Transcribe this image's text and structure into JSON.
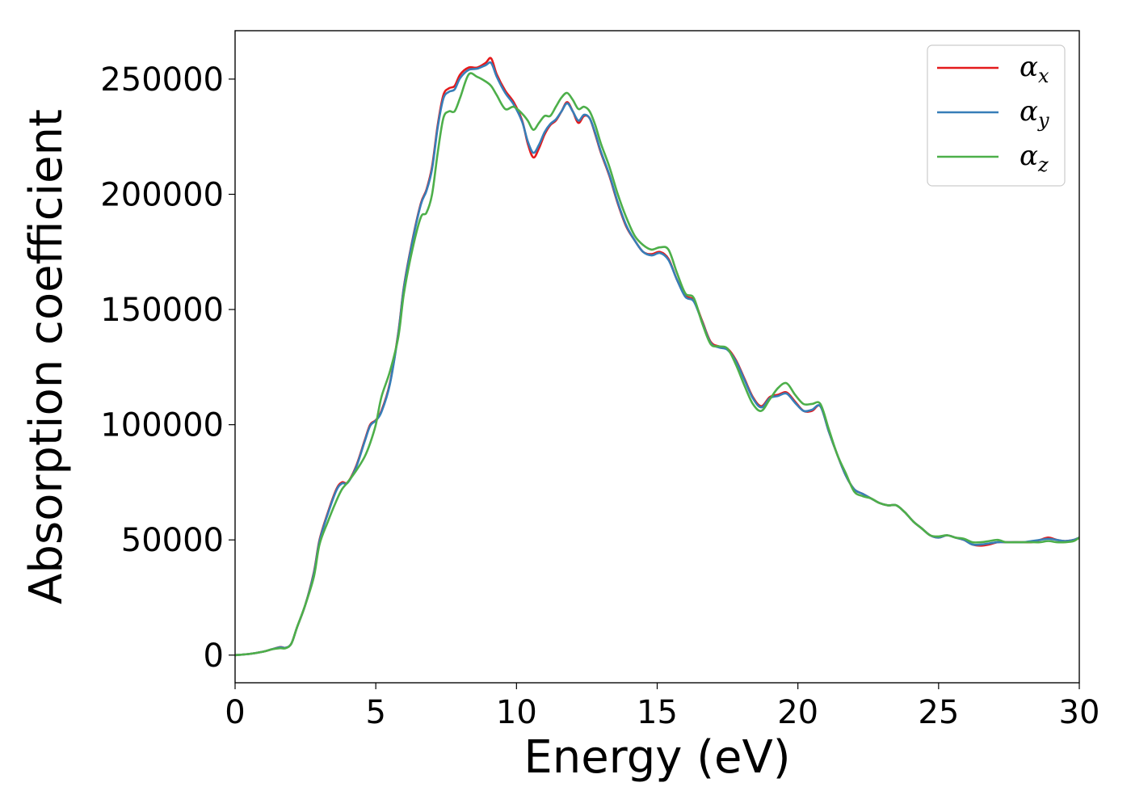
{
  "chart_data": {
    "type": "line",
    "title": "",
    "xlabel": "Energy (eV)",
    "ylabel": "Absorption coefficient",
    "xlim": [
      0,
      30
    ],
    "ylim": [
      -12000,
      271000
    ],
    "xticks": [
      0,
      5,
      10,
      15,
      20,
      25,
      30
    ],
    "xtick_labels": [
      "0",
      "5",
      "10",
      "15",
      "20",
      "25",
      "30"
    ],
    "yticks": [
      0,
      50000,
      100000,
      150000,
      200000,
      250000
    ],
    "ytick_labels": [
      "0",
      "50000",
      "100000",
      "150000",
      "200000",
      "250000"
    ],
    "grid": false,
    "legend_position": "top-right",
    "series": [
      {
        "name": "α_x",
        "legend_symbol": "α",
        "legend_sub": "x",
        "color": "#e41a1c",
        "x": [
          0,
          0.5,
          1.0,
          1.3,
          1.6,
          1.8,
          2.0,
          2.2,
          2.5,
          2.8,
          3.0,
          3.3,
          3.6,
          3.8,
          4.0,
          4.3,
          4.6,
          4.8,
          5.0,
          5.2,
          5.5,
          5.8,
          6.0,
          6.3,
          6.6,
          6.8,
          7.0,
          7.2,
          7.4,
          7.6,
          7.8,
          8.0,
          8.3,
          8.6,
          8.9,
          9.1,
          9.3,
          9.6,
          9.9,
          10.2,
          10.4,
          10.6,
          10.8,
          11.0,
          11.2,
          11.4,
          11.6,
          11.8,
          12.0,
          12.2,
          12.4,
          12.6,
          12.8,
          13.0,
          13.3,
          13.6,
          13.9,
          14.2,
          14.5,
          14.8,
          15.1,
          15.4,
          15.7,
          16.0,
          16.3,
          16.6,
          16.9,
          17.2,
          17.5,
          17.8,
          18.1,
          18.4,
          18.7,
          19.0,
          19.3,
          19.6,
          19.9,
          20.2,
          20.5,
          20.8,
          21.1,
          21.4,
          21.7,
          22.0,
          22.3,
          22.6,
          22.9,
          23.2,
          23.5,
          23.8,
          24.1,
          24.4,
          24.7,
          25.0,
          25.3,
          25.6,
          25.9,
          26.2,
          26.5,
          26.8,
          27.1,
          27.4,
          27.7,
          28.0,
          28.3,
          28.6,
          28.9,
          29.2,
          29.5,
          29.8,
          30.0
        ],
        "y": [
          0,
          500,
          1500,
          2500,
          3500,
          3200,
          5000,
          12000,
          22000,
          36000,
          50000,
          62000,
          72000,
          75000,
          75000,
          82000,
          93000,
          100000,
          102000,
          106000,
          118000,
          140000,
          160000,
          180000,
          196000,
          202000,
          212000,
          230000,
          243000,
          246000,
          247000,
          252000,
          255000,
          255000,
          257000,
          259000,
          252000,
          245000,
          240000,
          232000,
          222000,
          216000,
          220000,
          226000,
          230000,
          232000,
          236000,
          240000,
          236000,
          231000,
          234000,
          233000,
          226000,
          218000,
          208000,
          196000,
          186000,
          180000,
          175000,
          174000,
          175000,
          172000,
          163000,
          156000,
          154000,
          145000,
          136000,
          134000,
          133000,
          128000,
          120000,
          112000,
          108000,
          112000,
          113000,
          114000,
          110000,
          106000,
          106000,
          108000,
          97000,
          87000,
          78000,
          72000,
          70000,
          68000,
          66000,
          65000,
          65000,
          62000,
          58000,
          55000,
          52000,
          51000,
          52000,
          51000,
          50000,
          48000,
          47500,
          48000,
          49000,
          49000,
          49000,
          49000,
          49000,
          50000,
          51000,
          50000,
          49500,
          50000,
          51000
        ]
      },
      {
        "name": "α_y",
        "legend_symbol": "α",
        "legend_sub": "y",
        "color": "#377eb8",
        "x": [
          0,
          0.5,
          1.0,
          1.3,
          1.6,
          1.8,
          2.0,
          2.2,
          2.5,
          2.8,
          3.0,
          3.3,
          3.6,
          3.8,
          4.0,
          4.3,
          4.6,
          4.8,
          5.0,
          5.2,
          5.5,
          5.8,
          6.0,
          6.3,
          6.6,
          6.8,
          7.0,
          7.2,
          7.4,
          7.6,
          7.8,
          8.0,
          8.3,
          8.6,
          8.9,
          9.1,
          9.3,
          9.6,
          9.9,
          10.2,
          10.4,
          10.6,
          10.8,
          11.0,
          11.2,
          11.4,
          11.6,
          11.8,
          12.0,
          12.2,
          12.4,
          12.6,
          12.8,
          13.0,
          13.3,
          13.6,
          13.9,
          14.2,
          14.5,
          14.8,
          15.1,
          15.4,
          15.7,
          16.0,
          16.3,
          16.6,
          16.9,
          17.2,
          17.5,
          17.8,
          18.1,
          18.4,
          18.7,
          19.0,
          19.3,
          19.6,
          19.9,
          20.2,
          20.5,
          20.8,
          21.1,
          21.4,
          21.7,
          22.0,
          22.3,
          22.6,
          22.9,
          23.2,
          23.5,
          23.8,
          24.1,
          24.4,
          24.7,
          25.0,
          25.3,
          25.6,
          25.9,
          26.2,
          26.5,
          26.8,
          27.1,
          27.4,
          27.7,
          28.0,
          28.3,
          28.6,
          28.9,
          29.2,
          29.5,
          29.8,
          30.0
        ],
        "y": [
          0,
          500,
          1500,
          2500,
          3400,
          3200,
          5000,
          12000,
          22000,
          35500,
          49500,
          61500,
          71500,
          74500,
          74800,
          81500,
          92500,
          99500,
          101800,
          105500,
          117500,
          139500,
          159500,
          179500,
          195500,
          201500,
          211000,
          229000,
          241500,
          244500,
          245500,
          250500,
          254000,
          254500,
          256000,
          257000,
          251000,
          244000,
          239000,
          231500,
          223000,
          218000,
          221500,
          227000,
          230500,
          232500,
          236000,
          239500,
          236000,
          232000,
          234500,
          233000,
          226500,
          218500,
          208500,
          196500,
          186500,
          180000,
          175000,
          173500,
          174500,
          171500,
          163000,
          155500,
          153500,
          144500,
          135500,
          133500,
          132500,
          127500,
          119500,
          111500,
          107500,
          111500,
          112500,
          113500,
          109500,
          106000,
          106500,
          108000,
          97000,
          87000,
          78000,
          72000,
          70000,
          68000,
          66000,
          65000,
          65000,
          62000,
          58000,
          55000,
          52000,
          51000,
          52000,
          51000,
          50000,
          48000,
          48000,
          48500,
          49000,
          49000,
          49000,
          49000,
          49500,
          50000,
          50500,
          50000,
          49500,
          50000,
          51000
        ]
      },
      {
        "name": "α_z",
        "legend_symbol": "α",
        "legend_sub": "z",
        "color": "#4daf4a",
        "x": [
          0,
          0.5,
          1.0,
          1.3,
          1.6,
          1.8,
          2.0,
          2.2,
          2.5,
          2.8,
          3.0,
          3.3,
          3.6,
          3.8,
          4.0,
          4.3,
          4.6,
          4.8,
          5.0,
          5.2,
          5.5,
          5.8,
          6.0,
          6.3,
          6.6,
          6.8,
          7.0,
          7.2,
          7.4,
          7.6,
          7.8,
          8.0,
          8.3,
          8.6,
          8.9,
          9.1,
          9.3,
          9.6,
          9.9,
          10.2,
          10.4,
          10.6,
          10.8,
          11.0,
          11.2,
          11.4,
          11.6,
          11.8,
          12.0,
          12.2,
          12.4,
          12.6,
          12.8,
          13.0,
          13.3,
          13.6,
          13.9,
          14.2,
          14.5,
          14.8,
          15.1,
          15.4,
          15.7,
          16.0,
          16.3,
          16.6,
          16.9,
          17.2,
          17.5,
          17.8,
          18.1,
          18.4,
          18.7,
          19.0,
          19.3,
          19.6,
          19.9,
          20.2,
          20.5,
          20.8,
          21.1,
          21.4,
          21.7,
          22.0,
          22.3,
          22.6,
          22.9,
          23.2,
          23.5,
          23.8,
          24.1,
          24.4,
          24.7,
          25.0,
          25.3,
          25.6,
          25.9,
          26.2,
          26.5,
          26.8,
          27.1,
          27.4,
          27.7,
          28.0,
          28.3,
          28.6,
          28.9,
          29.2,
          29.5,
          29.8,
          30.0
        ],
        "y": [
          0,
          500,
          1500,
          2500,
          3000,
          3000,
          5000,
          12000,
          22000,
          34000,
          48000,
          58000,
          67000,
          72000,
          75000,
          80000,
          86000,
          92000,
          100000,
          112000,
          123000,
          138000,
          157000,
          176000,
          190000,
          192000,
          200000,
          218000,
          233000,
          236000,
          236000,
          242000,
          252000,
          251000,
          249000,
          247000,
          243000,
          237000,
          238000,
          235000,
          232000,
          228000,
          231000,
          234000,
          234000,
          238000,
          242000,
          244000,
          241000,
          237000,
          238000,
          236000,
          230000,
          222000,
          212000,
          200000,
          190000,
          182000,
          178000,
          176000,
          177000,
          176000,
          166000,
          157000,
          155000,
          144000,
          135000,
          134000,
          133000,
          126000,
          117000,
          109000,
          106000,
          111000,
          116000,
          118000,
          113000,
          109000,
          109000,
          109000,
          98000,
          87000,
          79000,
          71000,
          69000,
          68000,
          66000,
          65000,
          65000,
          62000,
          58000,
          55000,
          52000,
          51500,
          52000,
          51000,
          50500,
          49000,
          49000,
          49500,
          50000,
          49000,
          49000,
          49000,
          49000,
          49000,
          49500,
          49000,
          49000,
          49500,
          51000
        ]
      }
    ]
  }
}
